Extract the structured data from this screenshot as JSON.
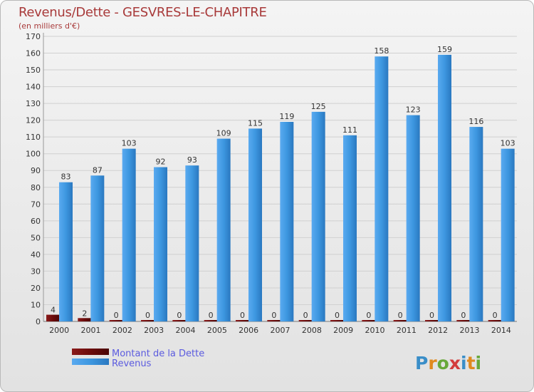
{
  "title": "Revenus/Dette - GESVRES-LE-CHAPITRE",
  "subtitle": "(en milliers d'€)",
  "logo": {
    "text": "Proxiti",
    "letter_colors": [
      "#3a8ec8",
      "#e08a1e",
      "#67a83a",
      "#d33c3c",
      "#3a8ec8",
      "#e08a1e",
      "#67a83a"
    ]
  },
  "colors": {
    "dette": "#6b0b0b",
    "revenus": "#3d97e0",
    "grid": "#d0d0d0",
    "title": "#a83a3a"
  },
  "chart_data": {
    "type": "bar",
    "categories": [
      "2000",
      "2001",
      "2002",
      "2003",
      "2004",
      "2005",
      "2006",
      "2007",
      "2008",
      "2009",
      "2010",
      "2011",
      "2012",
      "2013",
      "2014"
    ],
    "series": [
      {
        "name": "Montant de la Dette",
        "values": [
          4,
          2,
          0,
          0,
          0,
          0,
          0,
          0,
          0,
          0,
          0,
          0,
          0,
          0,
          0
        ]
      },
      {
        "name": "Revenus",
        "values": [
          83,
          87,
          103,
          92,
          93,
          109,
          115,
          119,
          125,
          111,
          158,
          123,
          159,
          116,
          103
        ]
      }
    ],
    "ylim": [
      0,
      170
    ],
    "yticks": [
      0,
      10,
      20,
      30,
      40,
      50,
      60,
      70,
      80,
      90,
      100,
      110,
      120,
      130,
      140,
      150,
      160,
      170
    ],
    "grid": true,
    "legend_position": "bottom-left"
  }
}
